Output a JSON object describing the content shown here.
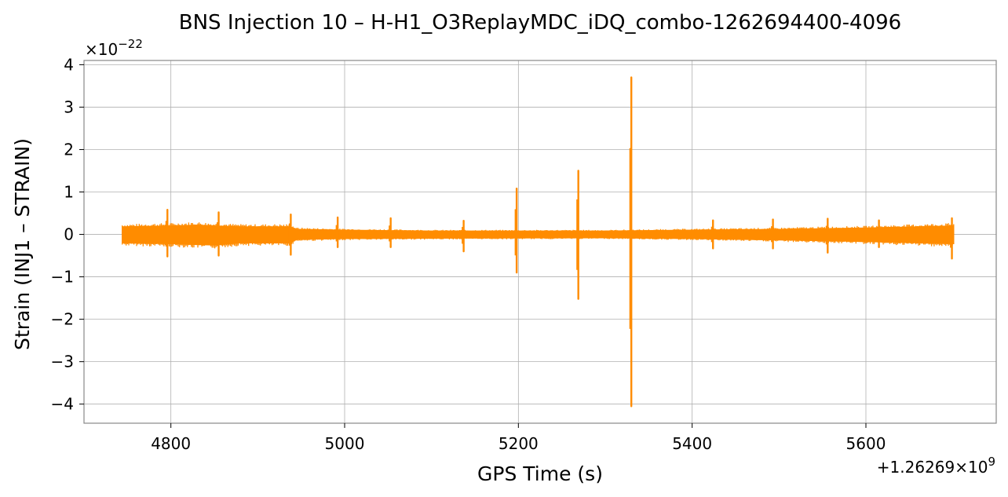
{
  "chart_data": {
    "type": "line",
    "title": "BNS Injection 10 – H-H1_O3ReplayMDC_iDQ_combo-1262694400-4096",
    "xlabel": "GPS Time (s)",
    "ylabel": "Strain (INJ1 – STRAIN)",
    "x_offset_label": "+1.26269×10",
    "x_offset_exponent": "9",
    "y_scale_label": "×10",
    "y_scale_exponent": "−22",
    "xlim": [
      4700,
      5750
    ],
    "ylim": [
      -4.45,
      4.1
    ],
    "xticks": [
      4800,
      5000,
      5200,
      5400,
      5600
    ],
    "xtick_labels": [
      "4800",
      "5000",
      "5200",
      "5400",
      "5600"
    ],
    "yticks": [
      -4,
      -3,
      -2,
      -1,
      0,
      1,
      2,
      3,
      4
    ],
    "ytick_labels": [
      "−4",
      "−3",
      "−2",
      "−1",
      "0",
      "1",
      "2",
      "3",
      "4"
    ],
    "grid": true,
    "color": "#ff8c00",
    "series": [
      {
        "x_range": [
          4744,
          5701
        ],
        "baseline_envelope": [
          {
            "x": 4744,
            "upper": 0.18,
            "lower": -0.2
          },
          {
            "x": 4800,
            "upper": 0.2,
            "lower": -0.22
          },
          {
            "x": 4830,
            "upper": 0.22,
            "lower": -0.24
          },
          {
            "x": 4850,
            "upper": 0.2,
            "lower": -0.25
          },
          {
            "x": 4880,
            "upper": 0.18,
            "lower": -0.2
          },
          {
            "x": 4937,
            "upper": 0.18,
            "lower": -0.2
          },
          {
            "x": 4945,
            "upper": 0.12,
            "lower": -0.12
          },
          {
            "x": 5000,
            "upper": 0.1,
            "lower": -0.1
          },
          {
            "x": 5100,
            "upper": 0.08,
            "lower": -0.09
          },
          {
            "x": 5300,
            "upper": 0.08,
            "lower": -0.08
          },
          {
            "x": 5400,
            "upper": 0.1,
            "lower": -0.1
          },
          {
            "x": 5500,
            "upper": 0.12,
            "lower": -0.13
          },
          {
            "x": 5600,
            "upper": 0.15,
            "lower": -0.17
          },
          {
            "x": 5701,
            "upper": 0.2,
            "lower": -0.22
          }
        ],
        "spikes": [
          {
            "x": 4796,
            "max": 0.58,
            "min": -0.52
          },
          {
            "x": 4855,
            "max": 0.52,
            "min": -0.5
          },
          {
            "x": 4938,
            "max": 0.47,
            "min": -0.48
          },
          {
            "x": 4992,
            "max": 0.4,
            "min": -0.3
          },
          {
            "x": 5053,
            "max": 0.38,
            "min": -0.3
          },
          {
            "x": 5137,
            "max": 0.32,
            "min": -0.4
          },
          {
            "x": 5198,
            "max": 1.08,
            "min": -0.9
          },
          {
            "x": 5269,
            "max": 1.5,
            "min": -1.52
          },
          {
            "x": 5330,
            "max": 3.7,
            "min": -4.05
          },
          {
            "x": 5424,
            "max": 0.33,
            "min": -0.33
          },
          {
            "x": 5493,
            "max": 0.35,
            "min": -0.33
          },
          {
            "x": 5556,
            "max": 0.37,
            "min": -0.43
          },
          {
            "x": 5615,
            "max": 0.33,
            "min": -0.3
          },
          {
            "x": 5699,
            "max": 0.38,
            "min": -0.57
          }
        ]
      }
    ]
  }
}
